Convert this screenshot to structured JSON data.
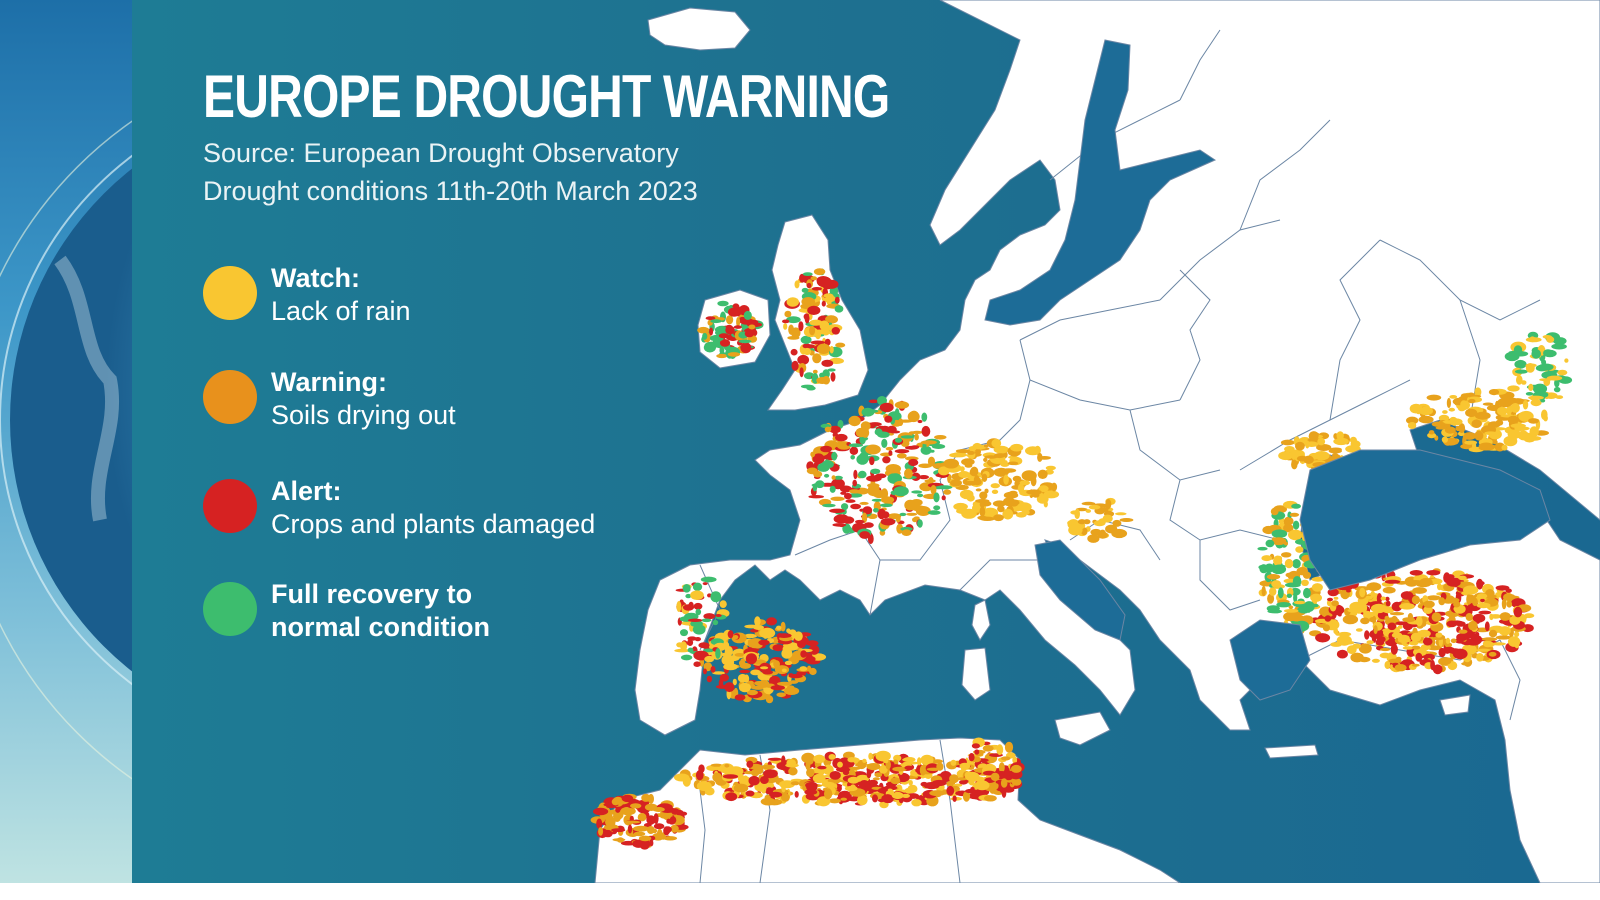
{
  "title": "EUROPE DROUGHT WARNING",
  "source": "Source: European Drought Observatory",
  "period": "Drought conditions 11th-20th March 2023",
  "legend": [
    {
      "label": "Watch:",
      "desc": "Lack of rain",
      "color": "#f9c631"
    },
    {
      "label": "Warning:",
      "desc": "Soils drying out",
      "color": "#e8911c"
    },
    {
      "label": "Alert:",
      "desc": "Crops and plants damaged",
      "color": "#d62222"
    },
    {
      "label": "Full recovery to",
      "desc": "normal condition",
      "color": "#3dbd6e",
      "bold_desc": true
    }
  ],
  "colors": {
    "sea": "#1d7291",
    "land": "#ffffff",
    "border": "#5b7fa0",
    "watch": "#f9c631",
    "warning": "#e8a21c",
    "alert": "#d62222",
    "recovery": "#3dbd6e"
  }
}
